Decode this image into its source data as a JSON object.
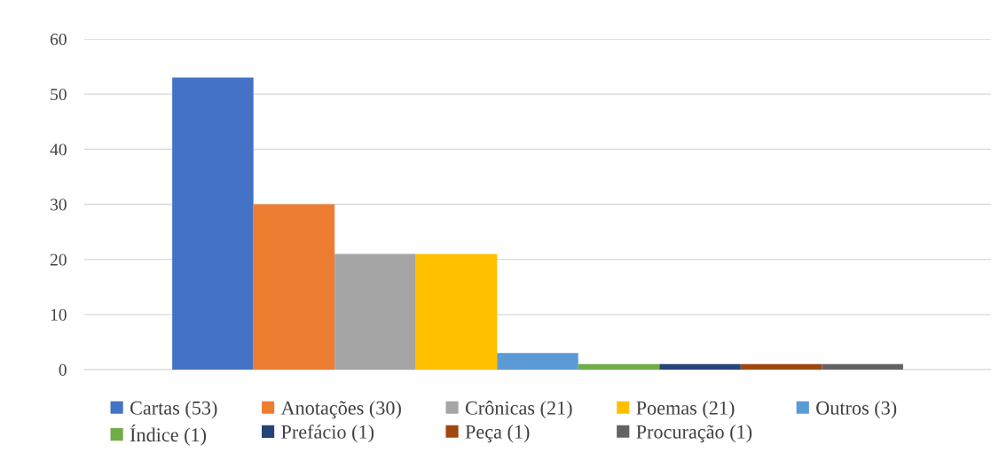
{
  "chart_data": {
    "type": "bar",
    "categories": [
      null
    ],
    "series": [
      {
        "name": "Cartas (53)",
        "color": "#4472c4",
        "values": [
          53
        ]
      },
      {
        "name": "Anotações (30)",
        "color": "#ed7d31",
        "values": [
          30
        ]
      },
      {
        "name": "Crônicas (21)",
        "color": "#a5a5a5",
        "values": [
          21
        ]
      },
      {
        "name": "Poemas (21)",
        "color": "#ffc000",
        "values": [
          21
        ]
      },
      {
        "name": "Outros (3)",
        "color": "#5b9bd5",
        "values": [
          3
        ]
      },
      {
        "name": "Índice (1)",
        "color": "#70ad47",
        "values": [
          1
        ]
      },
      {
        "name": "Prefácio (1)",
        "color": "#264478",
        "values": [
          1
        ]
      },
      {
        "name": "Peça (1)",
        "color": "#9e480e",
        "values": [
          1
        ]
      },
      {
        "name": "Procuração (1)",
        "color": "#636363",
        "values": [
          1
        ]
      }
    ],
    "ylim": [
      0,
      60
    ],
    "yticks": [
      0,
      10,
      20,
      30,
      40,
      50,
      60
    ],
    "grid": "y",
    "legend": "bottom"
  }
}
